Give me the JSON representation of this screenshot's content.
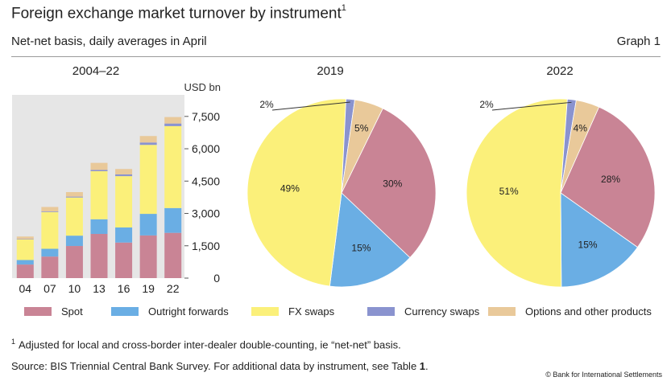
{
  "header": {
    "title": "Foreign exchange market turnover by instrument",
    "title_footnote_marker": "1",
    "subtitle": "Net-net basis, daily averages in April",
    "graph_number": "Graph 1"
  },
  "colors": {
    "Spot": "#c98495",
    "Outright forwards": "#6aaee4",
    "FX swaps": "#fbf07a",
    "Currency swaps": "#8a93cf",
    "Options and other products": "#e9c99a",
    "panel_bg": "#e6e6e6"
  },
  "chart_data": [
    {
      "type": "bar",
      "stacked": true,
      "title": "2004–22",
      "unit_label": "USD bn",
      "categories": [
        "04",
        "07",
        "10",
        "13",
        "16",
        "19",
        "22"
      ],
      "ylim": [
        0,
        8500
      ],
      "yticks": [
        0,
        1500,
        3000,
        4500,
        6000,
        7500
      ],
      "ytick_labels": [
        "0",
        "1,500",
        "3,000",
        "4,500",
        "6,000",
        "7,500"
      ],
      "y_axis_position": "right",
      "series": [
        {
          "name": "Spot",
          "values": [
            630,
            1000,
            1490,
            2050,
            1650,
            1980,
            2100
          ]
        },
        {
          "name": "Outright forwards",
          "values": [
            210,
            360,
            480,
            680,
            700,
            1000,
            1150
          ]
        },
        {
          "name": "FX swaps",
          "values": [
            950,
            1700,
            1770,
            2230,
            2380,
            3200,
            3800
          ]
        },
        {
          "name": "Currency swaps",
          "values": [
            20,
            30,
            40,
            55,
            80,
            110,
            120
          ]
        },
        {
          "name": "Options and other products",
          "values": [
            120,
            210,
            210,
            330,
            250,
            300,
            300
          ]
        }
      ]
    },
    {
      "type": "pie",
      "title": "2019",
      "slices": [
        {
          "name": "Spot",
          "value": 30,
          "label": "30%"
        },
        {
          "name": "Outright forwards",
          "value": 15,
          "label": "15%"
        },
        {
          "name": "FX swaps",
          "value": 49,
          "label": "49%"
        },
        {
          "name": "Currency swaps",
          "value": 1.5,
          "label": "2%"
        },
        {
          "name": "Options and other products",
          "value": 5,
          "label": "5%"
        }
      ]
    },
    {
      "type": "pie",
      "title": "2022",
      "slices": [
        {
          "name": "Spot",
          "value": 28,
          "label": "28%"
        },
        {
          "name": "Outright forwards",
          "value": 15,
          "label": "15%"
        },
        {
          "name": "FX swaps",
          "value": 51,
          "label": "51%"
        },
        {
          "name": "Currency swaps",
          "value": 1.5,
          "label": "2%"
        },
        {
          "name": "Options and other products",
          "value": 4,
          "label": "4%"
        }
      ]
    }
  ],
  "legend": {
    "placement": "bottom",
    "items": [
      "Spot",
      "Outright forwards",
      "FX swaps",
      "Currency swaps",
      "Options and other products"
    ]
  },
  "footnote": {
    "marker": "1",
    "text": "Adjusted for local and cross-border inter-dealer double-counting, ie “net-net” basis."
  },
  "source": {
    "text": "Source: BIS Triennial Central Bank Survey. For additional data by instrument, see Table ",
    "table_ref": "1",
    "end": "."
  },
  "copyright": "© Bank for International Settlements"
}
